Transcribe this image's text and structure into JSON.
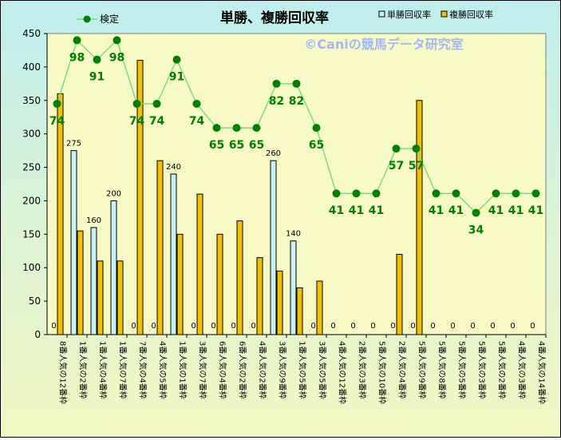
{
  "chart_data": {
    "type": "bar",
    "title": "単勝、複勝回収率",
    "watermark": "©Caniの競馬データ研究室",
    "ylim": [
      0,
      450
    ],
    "y_ticks": [
      "0",
      "50",
      "100",
      "150",
      "200",
      "250",
      "300",
      "350",
      "400",
      "450"
    ],
    "categories": [
      "8番人気の12番枠",
      "1番人気の2番枠",
      "1番人気の4番枠",
      "1番人気の7番枠",
      "7番人気の4番枠",
      "4番人気の5番枠",
      "1番人気の1番枠",
      "3番人気の7番枠",
      "6番人気の4番枠",
      "6番人気の2番枠",
      "4番人気の2番枠",
      "3番人気の9番枠",
      "1番人気の5番枠",
      "3番人気の5番枠",
      "4番人気の12番枠",
      "2番人気の3番枠",
      "5番人気の10番枠",
      "2番人気の4番枠",
      "5番人気の9番枠",
      "5番人気の8番枠",
      "5番人気の5番枠",
      "5番人気の3番枠",
      "5番人気の2番枠",
      "4番人気の3番枠",
      "4番人気の14番枠"
    ],
    "series": [
      {
        "name": "単勝回収率",
        "kind": "bar",
        "color": "#c8f0f5",
        "stroke": "#000000",
        "values": [
          0,
          275,
          160,
          200,
          0,
          0,
          240,
          0,
          0,
          0,
          0,
          260,
          140,
          0,
          0,
          0,
          0,
          0,
          0,
          0,
          0,
          0,
          0,
          0,
          0
        ]
      },
      {
        "name": "複勝回収率",
        "kind": "bar",
        "color": "#f2c200",
        "stroke": "#000000",
        "values": [
          360,
          155,
          110,
          110,
          410,
          260,
          150,
          210,
          150,
          170,
          115,
          95,
          70,
          80,
          0,
          0,
          0,
          120,
          350,
          0,
          0,
          0,
          0,
          0,
          0
        ]
      },
      {
        "name": "検定",
        "kind": "line",
        "color": "#008000",
        "line_color": "#7ddc7d",
        "values": [
          345,
          440,
          411,
          440,
          345,
          345,
          411,
          345,
          309,
          309,
          309,
          375,
          375,
          309,
          211,
          211,
          211,
          278,
          278,
          211,
          211,
          182,
          211,
          211,
          211
        ],
        "labels": [
          "74",
          "98",
          "91",
          "98",
          "74",
          "74",
          "91",
          "74",
          "65",
          "65",
          "65",
          "82",
          "82",
          "65",
          "41",
          "41",
          "41",
          "57",
          "57",
          "41",
          "41",
          "34",
          "41",
          "41",
          "41"
        ]
      }
    ],
    "single_labels_shown": [
      false,
      true,
      true,
      true,
      false,
      false,
      true,
      false,
      false,
      false,
      false,
      true,
      true,
      false,
      false,
      false,
      false,
      false,
      false,
      false,
      false,
      false,
      false,
      false,
      false
    ],
    "legend_position": "top",
    "grid": false
  }
}
